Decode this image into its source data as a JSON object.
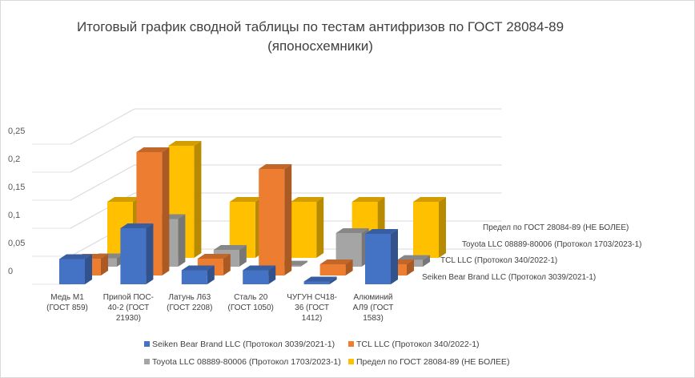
{
  "chart_data": {
    "type": "bar",
    "subtype": "3d-column",
    "title_line1": "Итоговый график сводной таблицы по тестам антифризов по ГОСТ 28084-89",
    "title_line2": "(японосхемники)",
    "categories": [
      [
        "Медь М1",
        "(ГОСТ 859)"
      ],
      [
        "Припой ПОС-",
        "40-2 (ГОСТ",
        "21930)"
      ],
      [
        "Латунь Л63",
        "(ГОСТ 2208)"
      ],
      [
        "Сталь 20",
        "(ГОСТ 1050)"
      ],
      [
        "ЧУГУН СЧ18-",
        "36 (ГОСТ",
        "1412)"
      ],
      [
        "Алюминий",
        "АЛ9 (ГОСТ",
        "1583)"
      ]
    ],
    "series": [
      {
        "name": "Seiken Bear Brand LLC (Протокол 3039/2021-1)",
        "color": "#4472c4",
        "values": [
          0.045,
          0.1,
          0.025,
          0.025,
          0.005,
          0.09
        ]
      },
      {
        "name": "TCL LLC (Протокол 340/2022-1)",
        "color": "#ed7d31",
        "values": [
          0.03,
          0.22,
          0.03,
          0.19,
          0.02,
          0.02
        ]
      },
      {
        "name": "Toyota LLC 08889-80006 (Протокол 1703/2023-1)",
        "color": "#a5a5a5",
        "values": [
          0.015,
          0.085,
          0.03,
          0.002,
          0.06,
          0.012
        ]
      },
      {
        "name": "Предел по ГОСТ 28084-89 (НЕ БОЛЕЕ)",
        "color": "#ffc000",
        "values": [
          0.1,
          0.2,
          0.1,
          0.1,
          0.1,
          0.1
        ]
      }
    ],
    "y_ticks": [
      "0",
      "0,05",
      "0,1",
      "0,15",
      "0,2",
      "0,25"
    ],
    "ylim": [
      0,
      0.25
    ],
    "grid": true,
    "legend_position": "bottom"
  }
}
